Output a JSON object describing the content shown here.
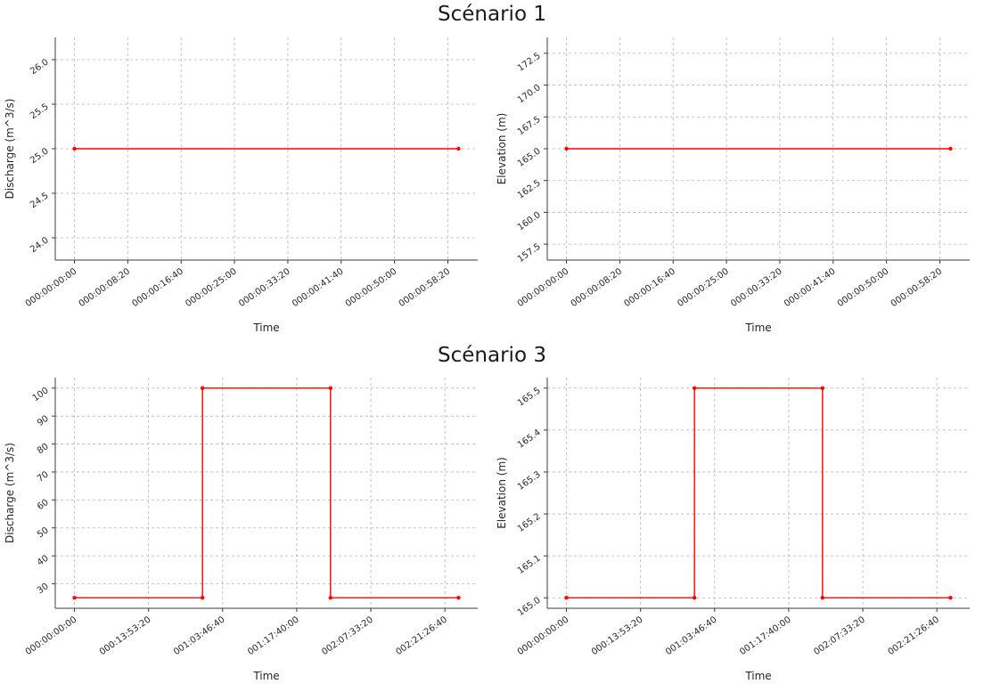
{
  "scenario_titles": [
    "Scénario 1",
    "Scénario 3"
  ],
  "styles": {
    "line_color": "#ff0000",
    "grid_color": "#b5b5b5",
    "spine_color": "#3c3c3c",
    "text_color": "#262626",
    "background": "#ffffff"
  },
  "chart_data": [
    {
      "type": "line",
      "scenario": "Scénario 1",
      "xlabel": "Time",
      "ylabel": "Discharge (m^3/s)",
      "x": [
        0,
        3600
      ],
      "y": [
        25.0,
        25.0
      ],
      "xlim": [
        -180,
        3780
      ],
      "ylim": [
        23.75,
        26.25
      ],
      "xticks": [
        0,
        500,
        1000,
        1500,
        2000,
        2500,
        3000,
        3500
      ],
      "xtick_labels": [
        "000:00:00:00",
        "000:00:08:20",
        "000:00:16:40",
        "000:00:25:00",
        "000:00:33:20",
        "000:00:41:40",
        "000:00:50:00",
        "000:00:58:20"
      ],
      "yticks": [
        24.0,
        24.5,
        25.0,
        25.5,
        26.0
      ],
      "ytick_labels": [
        "24.0",
        "24.5",
        "25.0",
        "25.5",
        "26.0"
      ],
      "grid": true,
      "legend": null
    },
    {
      "type": "line",
      "scenario": "Scénario 1",
      "xlabel": "Time",
      "ylabel": "Elevation (m)",
      "x": [
        0,
        3600
      ],
      "y": [
        165.0,
        165.0
      ],
      "xlim": [
        -180,
        3780
      ],
      "ylim": [
        156.25,
        173.75
      ],
      "xticks": [
        0,
        500,
        1000,
        1500,
        2000,
        2500,
        3000,
        3500
      ],
      "xtick_labels": [
        "000:00:00:00",
        "000:00:08:20",
        "000:00:16:40",
        "000:00:25:00",
        "000:00:33:20",
        "000:00:41:40",
        "000:00:50:00",
        "000:00:58:20"
      ],
      "yticks": [
        157.5,
        160.0,
        162.5,
        165.0,
        167.5,
        170.0,
        172.5
      ],
      "ytick_labels": [
        "157.5",
        "160.0",
        "162.5",
        "165.0",
        "167.5",
        "170.0",
        "172.5"
      ],
      "grid": true,
      "legend": null
    },
    {
      "type": "line",
      "scenario": "Scénario 3",
      "xlabel": "Time",
      "ylabel": "Discharge (m^3/s)",
      "x": [
        0,
        86400,
        86400,
        172800,
        172800,
        259200
      ],
      "y": [
        25,
        25,
        100,
        100,
        25,
        25
      ],
      "xlim": [
        -12960,
        272160
      ],
      "ylim": [
        21.25,
        103.75
      ],
      "xticks": [
        0,
        50000,
        100000,
        150000,
        200000,
        250000
      ],
      "xtick_labels": [
        "000:00:00:00",
        "000:13:53:20",
        "001:03:46:40",
        "001:17:40:00",
        "002:07:33:20",
        "002:21:26:40"
      ],
      "yticks": [
        30,
        40,
        50,
        60,
        70,
        80,
        90,
        100
      ],
      "ytick_labels": [
        "30",
        "40",
        "50",
        "60",
        "70",
        "80",
        "90",
        "100"
      ],
      "grid": true,
      "legend": null
    },
    {
      "type": "line",
      "scenario": "Scénario 3",
      "xlabel": "Time",
      "ylabel": "Elevation (m)",
      "x": [
        0,
        86400,
        86400,
        172800,
        172800,
        259200
      ],
      "y": [
        165.0,
        165.0,
        165.5,
        165.5,
        165.0,
        165.0
      ],
      "xlim": [
        -12960,
        272160
      ],
      "ylim": [
        164.975,
        165.525
      ],
      "xticks": [
        0,
        50000,
        100000,
        150000,
        200000,
        250000
      ],
      "xtick_labels": [
        "000:00:00:00",
        "000:13:53:20",
        "001:03:46:40",
        "001:17:40:00",
        "002:07:33:20",
        "002:21:26:40"
      ],
      "yticks": [
        165.0,
        165.1,
        165.2,
        165.3,
        165.4,
        165.5
      ],
      "ytick_labels": [
        "165.0",
        "165.1",
        "165.2",
        "165.3",
        "165.4",
        "165.5"
      ],
      "grid": true,
      "legend": null
    }
  ]
}
